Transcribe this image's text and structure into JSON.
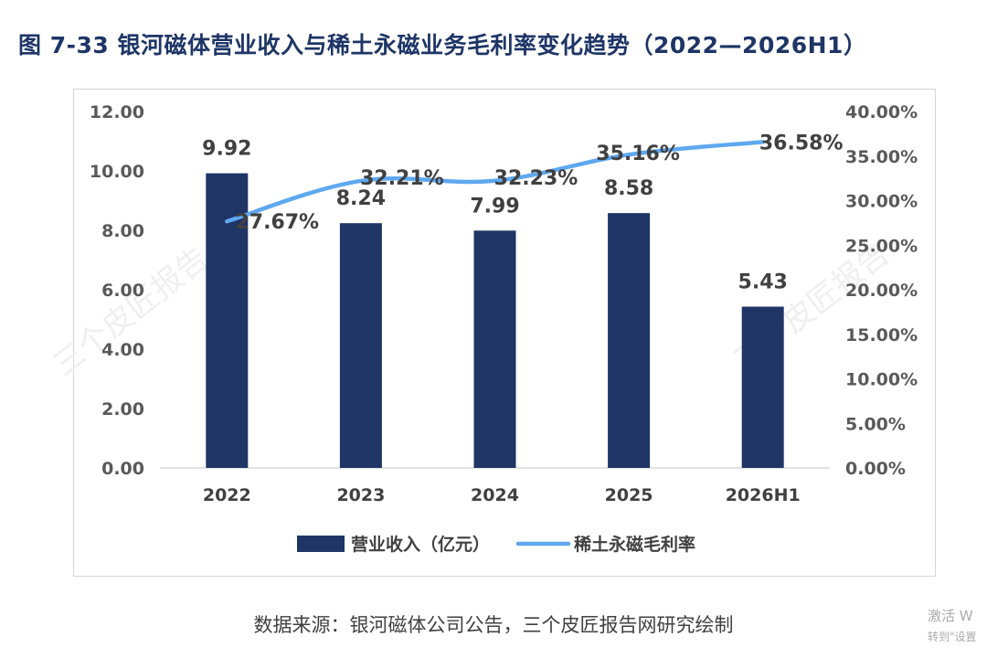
{
  "title": "图 7-33  银河磁体营业收入与稀土永磁业务毛利率变化趋势（2022—2026H1）",
  "source": "数据来源：银河磁体公司公告，三个皮匠报告网研究绘制",
  "watermark": "三个皮匠报告",
  "os_overlay": {
    "line1": "激活 W",
    "line2": "转到\"设置"
  },
  "chart_data": {
    "type": "bar",
    "categories": [
      "2022",
      "2023",
      "2024",
      "2025",
      "2026H1"
    ],
    "series": [
      {
        "name": "营业收入（亿元）",
        "type": "bar",
        "axis": "left",
        "color": "#1f3566",
        "values": [
          9.92,
          8.24,
          7.99,
          8.58,
          5.43
        ],
        "labels": [
          "9.92",
          "8.24",
          "7.99",
          "8.58",
          "5.43"
        ]
      },
      {
        "name": "稀土永磁毛利率",
        "type": "line",
        "axis": "right",
        "color": "#5ea8ef",
        "values": [
          27.67,
          32.21,
          32.23,
          35.16,
          36.58
        ],
        "labels": [
          "27.67%",
          "32.21%",
          "32.23%",
          "35.16%",
          "36.58%"
        ]
      }
    ],
    "left_axis": {
      "ylim": [
        0,
        12
      ],
      "ticks": [
        "0.00",
        "2.00",
        "4.00",
        "6.00",
        "8.00",
        "10.00",
        "12.00"
      ]
    },
    "right_axis": {
      "ylim": [
        0,
        40
      ],
      "ticks": [
        "0.00%",
        "5.00%",
        "10.00%",
        "15.00%",
        "20.00%",
        "25.00%",
        "30.00%",
        "35.00%",
        "40.00%"
      ]
    },
    "legend_position": "bottom",
    "grid": false
  }
}
